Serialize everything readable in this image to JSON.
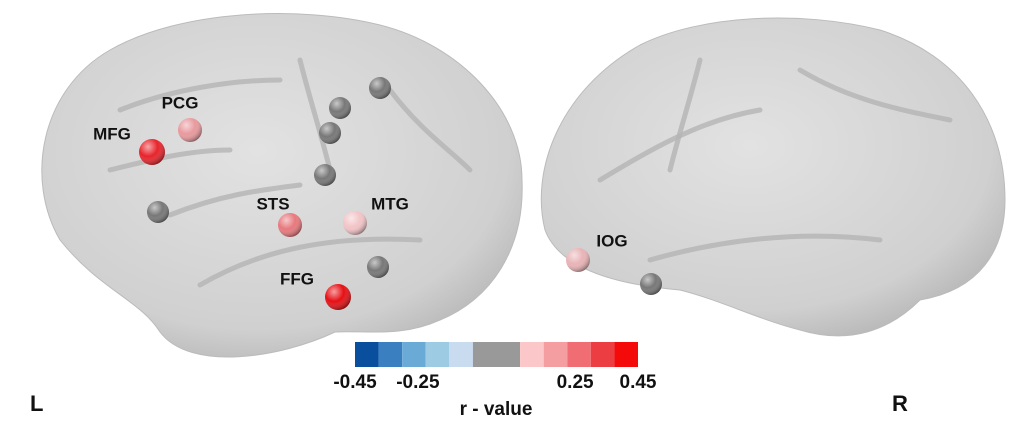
{
  "regions": [
    {
      "label": "MFG",
      "color": "#e8232a"
    },
    {
      "label": "PCG",
      "color": "#e8999d"
    },
    {
      "label": "STS",
      "color": "#e7787d"
    },
    {
      "label": "MTG",
      "color": "#f2c4c7"
    },
    {
      "label": "FFG",
      "color": "#e60f14"
    },
    {
      "label": "IOG",
      "color": "#e8b3b6"
    }
  ],
  "hemispheres": {
    "left": "L",
    "right": "R"
  },
  "colorbar": {
    "title": "r - value",
    "colors": [
      "#0a4f9e",
      "#3a7fc0",
      "#6aaad6",
      "#9ccbe3",
      "#c9dcef",
      "#999999",
      "#fbc7c9",
      "#f59ea2",
      "#f06e73",
      "#ec3d42",
      "#f50a0a"
    ],
    "clim": [
      -0.45,
      0.45
    ],
    "ticks": [
      -0.45,
      -0.25,
      0.25,
      0.45
    ]
  }
}
